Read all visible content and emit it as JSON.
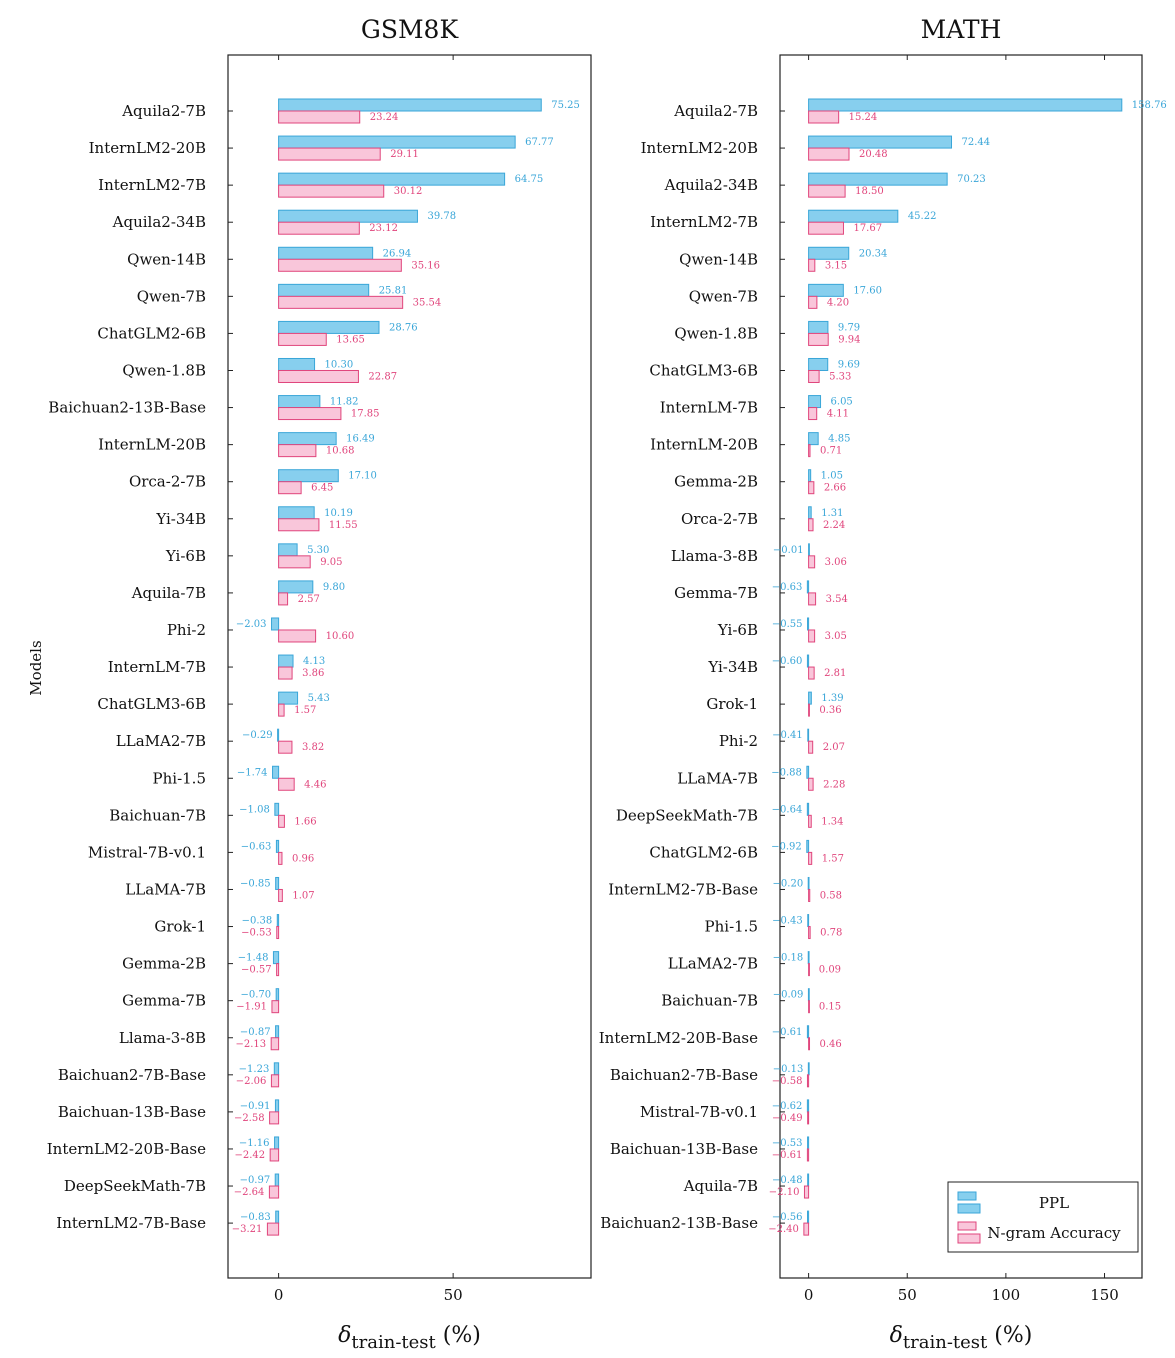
{
  "chart_data": [
    {
      "type": "bar",
      "orientation": "horizontal",
      "title": "GSM8K",
      "xlabel_symbol": "δ",
      "xlabel_subscript": "train-test",
      "xlabel_unit": " (%)",
      "ylabel": "Models",
      "xticks": [
        0,
        50
      ],
      "xlim": [
        -14.5,
        89.5
      ],
      "categories": [
        "Aquila2-7B",
        "InternLM2-20B",
        "InternLM2-7B",
        "Aquila2-34B",
        "Qwen-14B",
        "Qwen-7B",
        "ChatGLM2-6B",
        "Qwen-1.8B",
        "Baichuan2-13B-Base",
        "InternLM-20B",
        "Orca-2-7B",
        "Yi-34B",
        "Yi-6B",
        "Aquila-7B",
        "Phi-2",
        "InternLM-7B",
        "ChatGLM3-6B",
        "LLaMA2-7B",
        "Phi-1.5",
        "Baichuan-7B",
        "Mistral-7B-v0.1",
        "LLaMA-7B",
        "Grok-1",
        "Gemma-2B",
        "Gemma-7B",
        "Llama-3-8B",
        "Baichuan2-7B-Base",
        "Baichuan-13B-Base",
        "InternLM2-20B-Base",
        "DeepSeekMath-7B",
        "InternLM2-7B-Base"
      ],
      "series": [
        {
          "name": "PPL",
          "color": "#3aa6d8",
          "fill": "#87cfee",
          "values": [
            75.25,
            67.77,
            64.75,
            39.78,
            26.94,
            25.81,
            28.76,
            10.3,
            11.82,
            16.49,
            17.1,
            10.19,
            5.3,
            9.8,
            -2.03,
            4.13,
            5.43,
            -0.29,
            -1.74,
            -1.08,
            -0.63,
            -0.85,
            -0.38,
            -1.48,
            -0.7,
            -0.87,
            -1.23,
            -0.91,
            -1.16,
            -0.97,
            -0.83
          ],
          "labels": [
            "75.25",
            "67.77",
            "64.75",
            "39.78",
            "26.94",
            "25.81",
            "28.76",
            "10.30",
            "11.82",
            "16.49",
            "17.10",
            "10.19",
            "5.30",
            "9.80",
            "−2.03",
            "4.13",
            "5.43",
            "−0.29",
            "−1.74",
            "−1.08",
            "−0.63",
            "−0.85",
            "−0.38",
            "−1.48",
            "−0.70",
            "−0.87",
            "−1.23",
            "−0.91",
            "−1.16",
            "−0.97",
            "−0.83"
          ]
        },
        {
          "name": "N-gram Accuracy",
          "color": "#e0457c",
          "fill": "#f9c6da",
          "values": [
            23.24,
            29.11,
            30.12,
            23.12,
            35.16,
            35.54,
            13.65,
            22.87,
            17.85,
            10.68,
            6.45,
            11.55,
            9.05,
            2.57,
            10.6,
            3.86,
            1.57,
            3.82,
            4.46,
            1.66,
            0.96,
            1.07,
            -0.53,
            -0.57,
            -1.91,
            -2.13,
            -2.06,
            -2.58,
            -2.42,
            -2.64,
            -3.21
          ],
          "labels": [
            "23.24",
            "29.11",
            "30.12",
            "23.12",
            "35.16",
            "35.54",
            "13.65",
            "22.87",
            "17.85",
            "10.68",
            "6.45",
            "11.55",
            "9.05",
            "2.57",
            "10.60",
            "3.86",
            "1.57",
            "3.82",
            "4.46",
            "1.66",
            "0.96",
            "1.07",
            "−0.53",
            "−0.57",
            "−1.91",
            "−2.13",
            "−2.06",
            "−2.58",
            "−2.42",
            "−2.64",
            "−3.21"
          ]
        }
      ]
    },
    {
      "type": "bar",
      "orientation": "horizontal",
      "title": "MATH",
      "xlabel_symbol": "δ",
      "xlabel_subscript": "train-test",
      "xlabel_unit": " (%)",
      "xticks": [
        0,
        50,
        100,
        150
      ],
      "xlim": [
        -14.5,
        169
      ],
      "categories": [
        "Aquila2-7B",
        "InternLM2-20B",
        "Aquila2-34B",
        "InternLM2-7B",
        "Qwen-14B",
        "Qwen-7B",
        "Qwen-1.8B",
        "ChatGLM3-6B",
        "InternLM-7B",
        "InternLM-20B",
        "Gemma-2B",
        "Orca-2-7B",
        "Llama-3-8B",
        "Gemma-7B",
        "Yi-6B",
        "Yi-34B",
        "Grok-1",
        "Phi-2",
        "LLaMA-7B",
        "DeepSeekMath-7B",
        "ChatGLM2-6B",
        "InternLM2-7B-Base",
        "Phi-1.5",
        "LLaMA2-7B",
        "Baichuan-7B",
        "InternLM2-20B-Base",
        "Baichuan2-7B-Base",
        "Mistral-7B-v0.1",
        "Baichuan-13B-Base",
        "Aquila-7B",
        "Baichuan2-13B-Base"
      ],
      "series": [
        {
          "name": "PPL",
          "color": "#3aa6d8",
          "fill": "#87cfee",
          "values": [
            158.76,
            72.44,
            70.23,
            45.22,
            20.34,
            17.6,
            9.79,
            9.69,
            6.05,
            4.85,
            1.05,
            1.31,
            -0.01,
            -0.63,
            -0.55,
            -0.6,
            1.39,
            -0.41,
            -0.88,
            -0.64,
            -0.92,
            -0.2,
            -0.43,
            -0.18,
            -0.09,
            -0.61,
            -0.13,
            -0.62,
            -0.53,
            -0.48,
            -0.56
          ],
          "labels": [
            "158.76",
            "72.44",
            "70.23",
            "45.22",
            "20.34",
            "17.60",
            "9.79",
            "9.69",
            "6.05",
            "4.85",
            "1.05",
            "1.31",
            "−0.01",
            "−0.63",
            "−0.55",
            "−0.60",
            "1.39",
            "−0.41",
            "−0.88",
            "−0.64",
            "−0.92",
            "−0.20",
            "−0.43",
            "−0.18",
            "−0.09",
            "−0.61",
            "−0.13",
            "−0.62",
            "−0.53",
            "−0.48",
            "−0.56"
          ]
        },
        {
          "name": "N-gram Accuracy",
          "color": "#e0457c",
          "fill": "#f9c6da",
          "values": [
            15.24,
            20.48,
            18.5,
            17.67,
            3.15,
            4.2,
            9.94,
            5.33,
            4.11,
            0.71,
            2.66,
            2.24,
            3.06,
            3.54,
            3.05,
            2.81,
            0.36,
            2.07,
            2.28,
            1.34,
            1.57,
            0.58,
            0.78,
            0.09,
            0.15,
            0.46,
            -0.58,
            -0.49,
            -0.61,
            -2.1,
            -2.4
          ],
          "labels": [
            "15.24",
            "20.48",
            "18.50",
            "17.67",
            "3.15",
            "4.20",
            "9.94",
            "5.33",
            "4.11",
            "0.71",
            "2.66",
            "2.24",
            "3.06",
            "3.54",
            "3.05",
            "2.81",
            "0.36",
            "2.07",
            "2.28",
            "1.34",
            "1.57",
            "0.58",
            "0.78",
            "0.09",
            "0.15",
            "0.46",
            "−0.58",
            "−0.49",
            "−0.61",
            "−2.10",
            "−2.40"
          ]
        }
      ],
      "legend": {
        "position": "bottom-right",
        "entries": [
          "PPL",
          "N-gram Accuracy"
        ]
      }
    }
  ]
}
